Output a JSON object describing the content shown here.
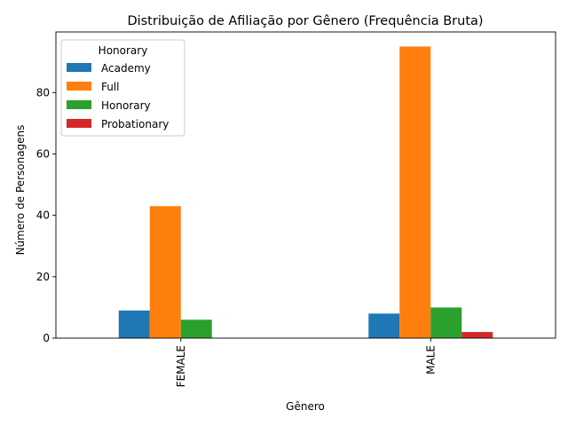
{
  "chart_data": {
    "type": "bar",
    "title": "Distribuição de Afiliação por Gênero (Frequência Bruta)",
    "xlabel": "Gênero",
    "ylabel": "Número de Personagens",
    "categories": [
      "FEMALE",
      "MALE"
    ],
    "series": [
      {
        "name": "Academy",
        "values": [
          9,
          8
        ],
        "color": "#1f77b4"
      },
      {
        "name": "Full",
        "values": [
          43,
          95
        ],
        "color": "#ff7f0e"
      },
      {
        "name": "Honorary",
        "values": [
          6,
          10
        ],
        "color": "#2ca02c"
      },
      {
        "name": "Probationary",
        "values": [
          0,
          2
        ],
        "color": "#d62728"
      }
    ],
    "ylim": [
      0,
      99.75
    ],
    "yticks": [
      0,
      20,
      40,
      60,
      80
    ],
    "legend": {
      "title": "Honorary",
      "position": "top-left"
    },
    "grid": false
  }
}
